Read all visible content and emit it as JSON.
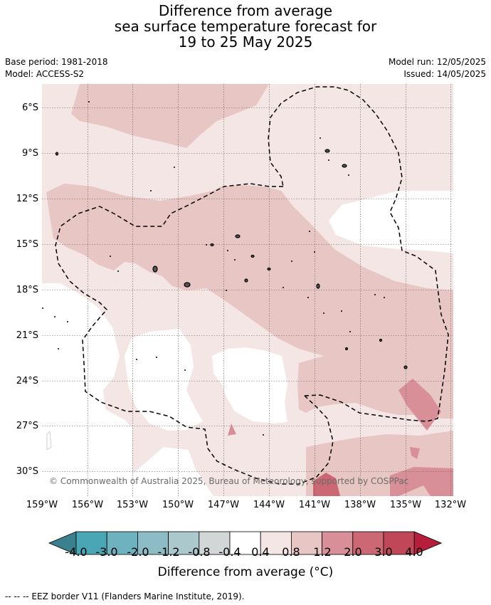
{
  "title": {
    "line1": "Difference from average",
    "line2": "sea surface temperature forecast for",
    "line3": "19 to 25 May 2025"
  },
  "meta": {
    "base_period": "Base period: 1981-2018",
    "model": "Model: ACCESS-S2",
    "model_run": "Model run: 12/05/2025",
    "issued": "Issued: 14/05/2025"
  },
  "axes": {
    "lat_labels": [
      "6°S",
      "9°S",
      "12°S",
      "15°S",
      "18°S",
      "21°S",
      "24°S",
      "27°S",
      "30°S"
    ],
    "lon_labels": [
      "159°W",
      "156°W",
      "153°W",
      "150°W",
      "147°W",
      "144°W",
      "141°W",
      "138°W",
      "135°W",
      "132°W"
    ]
  },
  "copyright": "© Commonwealth of Australia 2025, Bureau of Meteorology, supported by COSPPac",
  "colorbar": {
    "ticks": [
      "-4.0",
      "-3.0",
      "-2.0",
      "-1.2",
      "-0.8",
      "-0.4",
      "0.4",
      "0.8",
      "1.2",
      "2.0",
      "3.0",
      "4.0"
    ],
    "colors": [
      "#3a808f",
      "#4aa5b5",
      "#6eb1bf",
      "#8dbcc6",
      "#abc9cc",
      "#d2d6d6",
      "#ffffff",
      "#f4e6e5",
      "#e8c6c3",
      "#d98f97",
      "#cc6774",
      "#c04757",
      "#b51f3c"
    ],
    "title": "Difference from average (°C)"
  },
  "footnote": "-- -- -- EEZ border V11 (Flanders Marine Institute, 2019)."
}
